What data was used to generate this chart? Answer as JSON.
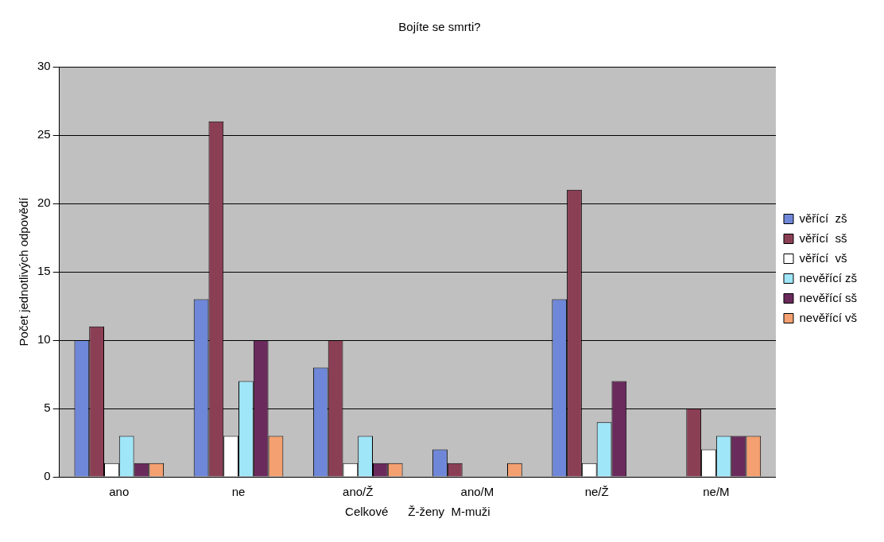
{
  "chart_data": {
    "type": "bar",
    "title": "Bojíte se smrti?",
    "xlabel": "Celkové      Ž-ženy  M-muži",
    "ylabel": "Počet jednotlivých odpovědí",
    "categories": [
      "ano",
      "ne",
      "ano/Ž",
      "ano/M",
      "ne/Ž",
      "ne/M"
    ],
    "series": [
      {
        "name": "věřící  zš",
        "color": "#6f87d8",
        "values": [
          10,
          13,
          8,
          2,
          13,
          0
        ]
      },
      {
        "name": "věřící  sš",
        "color": "#8b3f55",
        "values": [
          11,
          26,
          10,
          1,
          21,
          5
        ]
      },
      {
        "name": "věřící  vš",
        "color": "#ffffff",
        "values": [
          1,
          3,
          1,
          0,
          1,
          2
        ]
      },
      {
        "name": "nevěřící zš",
        "color": "#9fe6f8",
        "values": [
          3,
          7,
          3,
          0,
          4,
          3
        ]
      },
      {
        "name": "nevěřící sš",
        "color": "#6a2a5c",
        "values": [
          1,
          10,
          1,
          0,
          7,
          3
        ]
      },
      {
        "name": "nevěřící vš",
        "color": "#f4a070",
        "values": [
          1,
          3,
          1,
          1,
          0,
          3
        ]
      }
    ],
    "ylim": [
      0,
      30
    ],
    "yticks": [
      0,
      5,
      10,
      15,
      20,
      25,
      30
    ],
    "grid": "y",
    "legend": "right"
  }
}
